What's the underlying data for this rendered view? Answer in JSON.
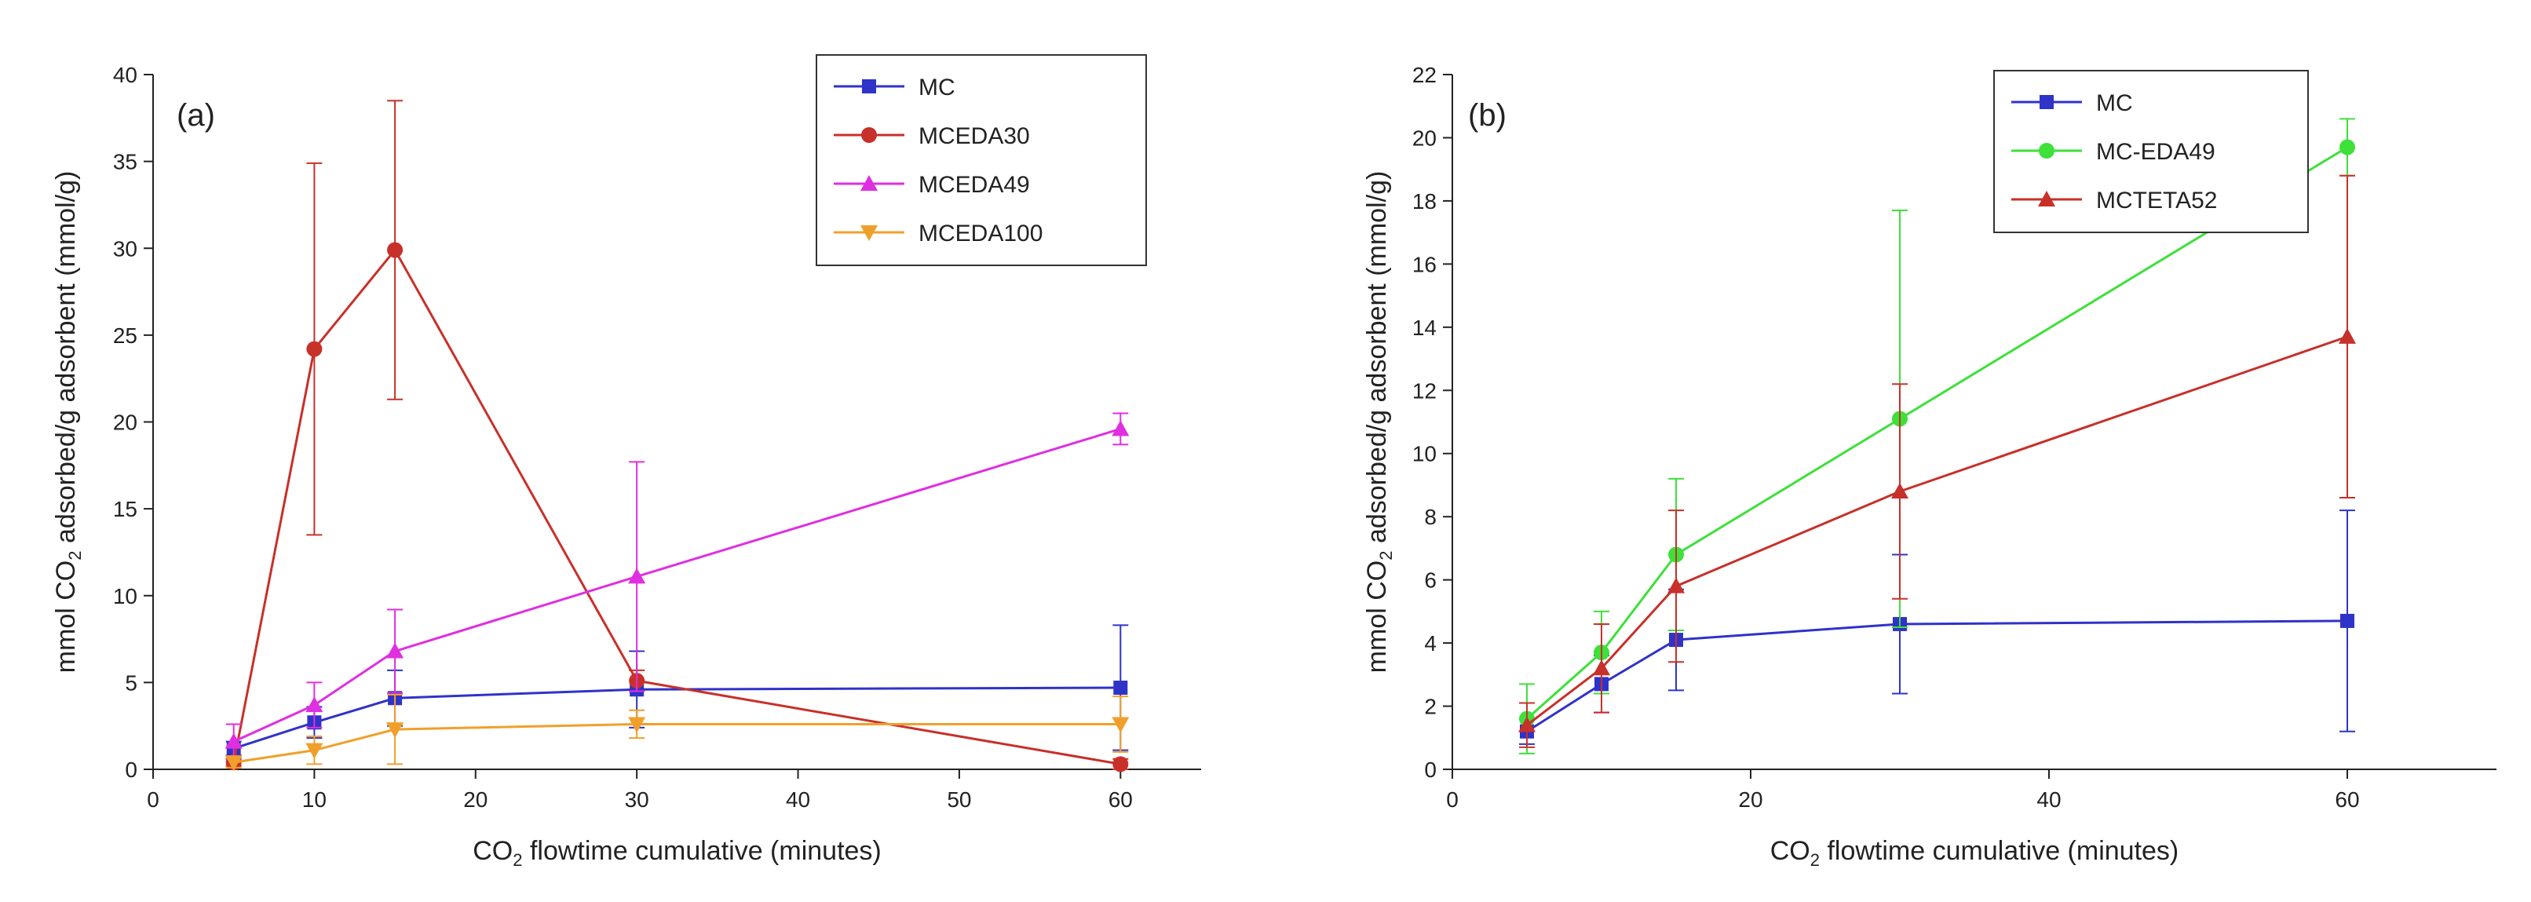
{
  "chart_data": [
    {
      "type": "line",
      "panel_label": "(a)",
      "xlabel_prefix": "CO",
      "xlabel_sub": "2",
      "xlabel_suffix": " flowtime cumulative (minutes)",
      "ylabel_prefix": "mmol CO",
      "ylabel_sub": "2",
      "ylabel_suffix": " adsorbed/g adsorbent (mmol/g)",
      "xlim": [
        0,
        65
      ],
      "ylim": [
        0,
        40
      ],
      "xticks": [
        0,
        10,
        20,
        30,
        40,
        50,
        60
      ],
      "yticks": [
        0,
        5,
        10,
        15,
        20,
        25,
        30,
        35,
        40
      ],
      "legend_position": "top-right",
      "x": [
        5,
        10,
        15,
        30,
        60
      ],
      "series": [
        {
          "name": "MC",
          "color": "#2f33c8",
          "marker": "square",
          "values": [
            1.2,
            2.7,
            4.1,
            4.6,
            4.7
          ],
          "err": [
            0.4,
            0.9,
            1.6,
            2.2,
            3.6
          ]
        },
        {
          "name": "MCEDA30",
          "color": "#c8302a",
          "marker": "circle",
          "values": [
            0.4,
            24.2,
            29.9,
            5.1,
            0.3
          ],
          "err": [
            0.2,
            10.7,
            8.6,
            0.6,
            0.3
          ]
        },
        {
          "name": "MCEDA49",
          "color": "#e02fe0",
          "marker": "triangle-up",
          "values": [
            1.6,
            3.7,
            6.8,
            11.1,
            19.6
          ],
          "err": [
            1.0,
            1.3,
            2.4,
            6.6,
            0.9
          ]
        },
        {
          "name": "MCEDA100",
          "color": "#f0a02a",
          "marker": "triangle-down",
          "values": [
            0.4,
            1.1,
            2.3,
            2.6,
            2.6
          ],
          "err": [
            0.3,
            0.8,
            2.0,
            0.8,
            1.6
          ]
        }
      ]
    },
    {
      "type": "line",
      "panel_label": "(b)",
      "xlabel_prefix": "CO",
      "xlabel_sub": "2",
      "xlabel_suffix": " flowtime cumulative (minutes)",
      "ylabel_prefix": "mmol CO",
      "ylabel_sub": "2",
      "ylabel_suffix": " adsorbed/g adsorbent (mmol/g)",
      "xlim": [
        0,
        70
      ],
      "ylim": [
        0,
        22
      ],
      "xticks": [
        0,
        20,
        40,
        60
      ],
      "yticks": [
        0,
        2,
        4,
        6,
        8,
        10,
        12,
        14,
        16,
        18,
        20,
        22
      ],
      "legend_position": "top-right",
      "x": [
        5,
        10,
        15,
        30,
        60
      ],
      "series": [
        {
          "name": "MC",
          "color": "#2f33c8",
          "marker": "square",
          "values": [
            1.2,
            2.7,
            4.1,
            4.6,
            4.7
          ],
          "err": [
            0.4,
            0.9,
            1.6,
            2.2,
            3.5
          ]
        },
        {
          "name": "MC-EDA49",
          "color": "#3ee03a",
          "marker": "circle",
          "values": [
            1.6,
            3.7,
            6.8,
            11.1,
            19.7
          ],
          "err": [
            1.1,
            1.3,
            2.4,
            6.6,
            0.9
          ]
        },
        {
          "name": "MCTETA52",
          "color": "#c8302a",
          "marker": "triangle-up",
          "values": [
            1.4,
            3.2,
            5.8,
            8.8,
            13.7
          ],
          "err": [
            0.7,
            1.4,
            2.4,
            3.4,
            5.1
          ]
        }
      ]
    }
  ]
}
